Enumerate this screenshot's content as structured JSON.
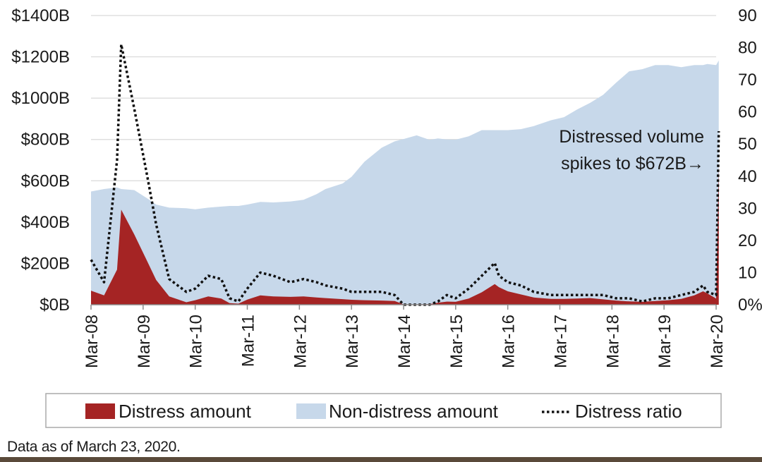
{
  "chart_data": {
    "type": "area",
    "title": "",
    "x_ticks": [
      "Mar-08",
      "Mar-09",
      "Mar-10",
      "Mar-11",
      "Mar-12",
      "Mar-13",
      "Mar-14",
      "Mar-15",
      "Mar-16",
      "Mar-17",
      "Mar-18",
      "Mar-19",
      "Mar-20"
    ],
    "y_left": {
      "ticks": [
        "$0B",
        "$200B",
        "$400B",
        "$600B",
        "$800B",
        "$1000B",
        "$1200B",
        "$1400B"
      ],
      "range": [
        0,
        1400
      ],
      "unit": "$B"
    },
    "y_right": {
      "ticks": [
        "0%",
        "10",
        "20",
        "30",
        "40",
        "50",
        "60",
        "70",
        "80",
        "90"
      ],
      "range": [
        0,
        90
      ],
      "unit": "%"
    },
    "grid": "horizontal",
    "legend_position": "bottom",
    "legend": [
      "Distress amount",
      "Non-distress amount",
      "Distress ratio"
    ],
    "colors": {
      "distress": "#a52424",
      "non_distress": "#c7d8ea",
      "ratio": "#111111",
      "grid": "#d9d9d9"
    },
    "x_years": [
      2008.17,
      2008.42,
      2008.67,
      2008.75,
      2009.0,
      2009.25,
      2009.42,
      2009.67,
      2010.0,
      2010.17,
      2010.42,
      2010.67,
      2010.83,
      2011.0,
      2011.17,
      2011.42,
      2011.67,
      2012.0,
      2012.25,
      2012.5,
      2012.67,
      2013.0,
      2013.17,
      2013.42,
      2013.75,
      2014.0,
      2014.17,
      2014.42,
      2014.67,
      2014.83,
      2015.0,
      2015.17,
      2015.42,
      2015.67,
      2015.92,
      2016.0,
      2016.17,
      2016.42,
      2016.67,
      2017.0,
      2017.25,
      2017.5,
      2017.75,
      2018.0,
      2018.25,
      2018.5,
      2018.75,
      2019.0,
      2019.25,
      2019.5,
      2019.75,
      2019.92,
      2020.0,
      2020.17,
      2020.22
    ],
    "series": [
      {
        "name": "Distress amount",
        "values": [
          68,
          45,
          170,
          460,
          340,
          210,
          120,
          40,
          12,
          22,
          40,
          30,
          8,
          5,
          25,
          45,
          40,
          38,
          40,
          35,
          32,
          27,
          24,
          22,
          20,
          18,
          2,
          2,
          3,
          10,
          15,
          14,
          30,
          60,
          100,
          85,
          65,
          50,
          35,
          28,
          28,
          30,
          32,
          26,
          20,
          16,
          14,
          18,
          22,
          28,
          45,
          65,
          55,
          30,
          672
        ]
      },
      {
        "name": "Non-distress amount",
        "values": [
          480,
          515,
          398,
          100,
          215,
          305,
          365,
          430,
          455,
          440,
          430,
          445,
          470,
          473,
          460,
          453,
          455,
          462,
          468,
          500,
          528,
          560,
          595,
          670,
          740,
          773,
          800,
          818,
          795,
          795,
          785,
          785,
          785,
          785,
          745,
          760,
          780,
          800,
          830,
          865,
          880,
          915,
          945,
          990,
          1055,
          1114,
          1126,
          1142,
          1138,
          1122,
          1115,
          1095,
          1110,
          1130,
          510
        ]
      },
      {
        "name": "Distress ratio",
        "values": [
          14,
          7,
          45,
          81,
          61,
          40,
          25,
          8,
          4,
          5,
          9,
          8,
          2,
          1,
          5,
          10,
          9,
          7,
          8,
          7,
          6,
          5,
          4,
          4,
          4,
          3,
          0,
          0,
          0,
          1,
          3,
          2,
          5,
          9,
          13,
          9,
          7,
          6,
          4,
          3,
          3,
          3,
          3,
          3,
          2,
          2,
          1,
          2,
          2,
          3,
          4,
          6,
          4,
          3,
          54
        ]
      }
    ],
    "annotations": [
      "Distressed volume",
      "spikes to $672B→"
    ]
  },
  "footnote": "Data as of March 23, 2020."
}
